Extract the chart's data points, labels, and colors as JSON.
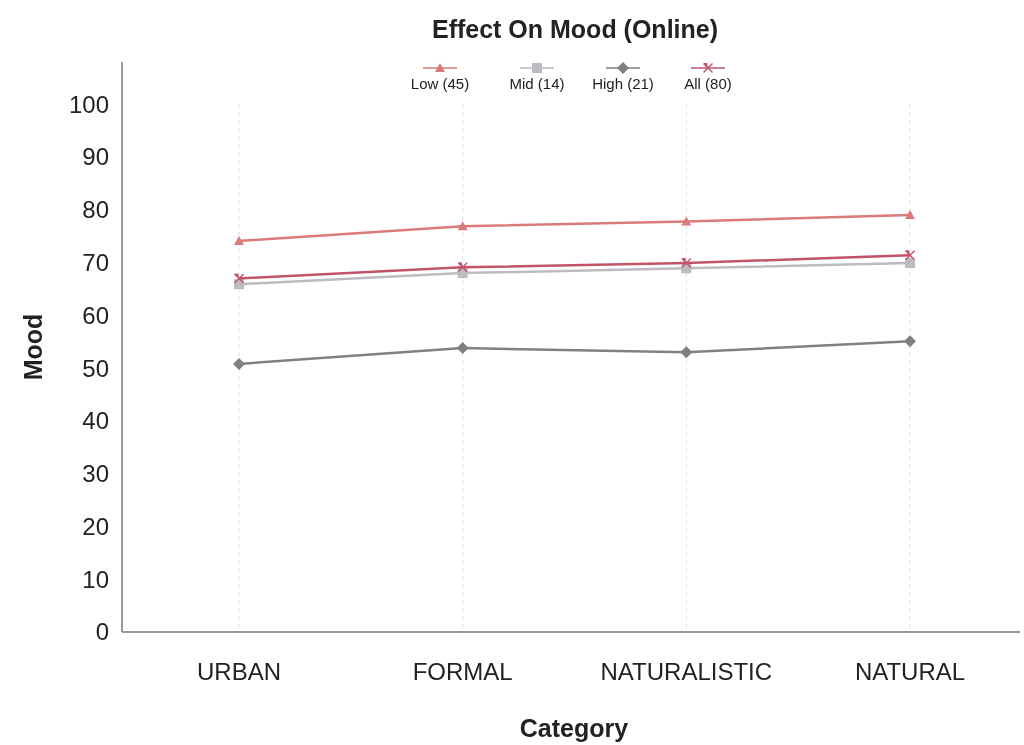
{
  "chart_data": {
    "type": "line",
    "title": "Effect On Mood (Online)",
    "xlabel": "Category",
    "ylabel": "Mood",
    "categories": [
      "URBAN",
      "FORMAL",
      "NATURALISTIC",
      "NATURAL"
    ],
    "series": [
      {
        "name": "Low (45)",
        "color": "#d97b7b",
        "marker": "triangle",
        "values": [
          74.1,
          76.9,
          77.8,
          79.0
        ]
      },
      {
        "name": "Mid (14)",
        "color": "#bdbbbf",
        "marker": "square",
        "values": [
          65.9,
          68.0,
          68.9,
          69.9
        ]
      },
      {
        "name": "High (21)",
        "color": "#808080",
        "marker": "diamond",
        "values": [
          50.8,
          53.8,
          53.0,
          55.1
        ]
      },
      {
        "name": "All (80)",
        "color": "#c25468",
        "marker": "cross",
        "values": [
          67.0,
          69.1,
          69.9,
          71.4
        ]
      }
    ],
    "ylim": [
      0,
      108
    ],
    "yticks": [
      0,
      10,
      20,
      30,
      40,
      50,
      60,
      70,
      80,
      90,
      100
    ],
    "grid": "x",
    "legend": "top",
    "line_style": "solid"
  }
}
